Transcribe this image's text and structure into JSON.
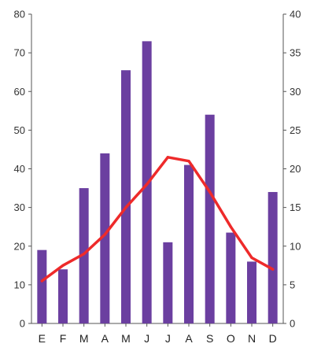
{
  "chart_data": {
    "type": "bar",
    "categories": [
      "E",
      "F",
      "M",
      "A",
      "M",
      "J",
      "J",
      "A",
      "S",
      "O",
      "N",
      "D"
    ],
    "series": [
      {
        "type": "bar",
        "axis": "left",
        "values": [
          19,
          14,
          35,
          44,
          65.5,
          73,
          21,
          41,
          54,
          23.5,
          16,
          34
        ]
      },
      {
        "type": "line",
        "axis": "right",
        "values": [
          5.5,
          7.5,
          9,
          11.5,
          15,
          18,
          21.5,
          21,
          17,
          12.5,
          8.5,
          7
        ]
      }
    ],
    "y_left": {
      "ylim": [
        0,
        80
      ],
      "ticks": [
        "0",
        "10",
        "20",
        "30",
        "40",
        "50",
        "60",
        "70",
        "80"
      ]
    },
    "y_right": {
      "ylim": [
        0,
        40
      ],
      "ticks": [
        "0",
        "5",
        "10",
        "15",
        "20",
        "25",
        "30",
        "35",
        "40"
      ]
    },
    "grid": false,
    "colors": {
      "bar": "#6b3fa0",
      "line": "#ee2a2a",
      "axis": "#555555",
      "text": "#333333"
    }
  }
}
